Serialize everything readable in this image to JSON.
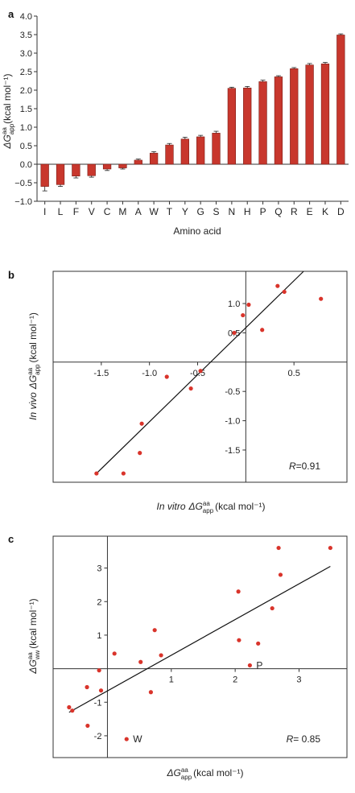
{
  "colors": {
    "bar": "#c8372d",
    "point": "#d9342b",
    "axis": "#333333",
    "line": "#111111"
  },
  "chart_data": [
    {
      "panel": "a",
      "type": "bar",
      "categories": [
        "I",
        "L",
        "F",
        "V",
        "C",
        "M",
        "A",
        "W",
        "T",
        "Y",
        "G",
        "S",
        "N",
        "H",
        "P",
        "Q",
        "R",
        "E",
        "K",
        "D"
      ],
      "values": [
        -0.6,
        -0.55,
        -0.32,
        -0.31,
        -0.13,
        -0.1,
        0.11,
        0.3,
        0.52,
        0.68,
        0.74,
        0.84,
        2.05,
        2.06,
        2.23,
        2.36,
        2.58,
        2.68,
        2.71,
        3.49
      ],
      "errors": [
        0.12,
        0.05,
        0.05,
        0.04,
        0.04,
        0.03,
        0.03,
        0.04,
        0.04,
        0.05,
        0.04,
        0.05,
        0.03,
        0.04,
        0.04,
        0.03,
        0.03,
        0.04,
        0.04,
        0.03
      ],
      "xlabel": "Amino acid",
      "ylabel": {
        "main": "ΔG",
        "sup": "aa",
        "sub": "app",
        "unit": "(kcal mol⁻¹)"
      },
      "ylim": [
        -1.0,
        4.0
      ],
      "yticks": [
        "4.0",
        "3.5",
        "3.0",
        "2.5",
        "2.0",
        "1.5",
        "1.0",
        "0.5",
        "0.0",
        "−0.5",
        "−1.0"
      ]
    },
    {
      "panel": "b",
      "type": "scatter",
      "x": [
        -1.55,
        -1.27,
        -1.1,
        -1.08,
        -0.82,
        -0.57,
        -0.47,
        -0.12,
        -0.03,
        0.03,
        0.17,
        0.33,
        0.4,
        0.78
      ],
      "y": [
        -1.9,
        -1.9,
        -1.55,
        -1.05,
        -0.25,
        -0.45,
        -0.15,
        0.5,
        0.8,
        0.98,
        0.55,
        1.3,
        1.2,
        1.08
      ],
      "fit": [
        [
          -1.55,
          -1.9
        ],
        [
          0.6,
          1.55
        ]
      ],
      "xticks": [
        "-1.5",
        "-1.0",
        "-0.5",
        "0.5"
      ],
      "yticks": [
        "1.0",
        "0.5",
        "-0.5",
        "-1.0",
        "-1.5"
      ],
      "xlim": [
        -2.0,
        1.05
      ],
      "ylim": [
        -2.05,
        1.55
      ],
      "xlabel": {
        "pre": "In vitro",
        "main": "ΔG",
        "sup": "aa",
        "sub": "app",
        "unit": "(kcal mol⁻¹)"
      },
      "ylabel": {
        "pre": "In vivo",
        "main": "ΔG",
        "sup": "aa",
        "sub": "app",
        "unit": "(kcal mol⁻¹)"
      },
      "annotation": {
        "var": "R",
        "value": "=0.91"
      }
    },
    {
      "panel": "c",
      "type": "scatter",
      "x": [
        -0.6,
        -0.55,
        -0.32,
        -0.31,
        -0.13,
        -0.1,
        0.11,
        0.3,
        0.52,
        0.68,
        0.74,
        0.84,
        2.05,
        2.06,
        2.23,
        2.36,
        2.58,
        2.68,
        2.71,
        3.49
      ],
      "y": [
        -1.15,
        -1.25,
        -0.55,
        -1.7,
        -0.05,
        -0.65,
        0.45,
        -2.1,
        0.2,
        -0.7,
        1.15,
        0.4,
        2.3,
        0.85,
        0.1,
        0.75,
        1.8,
        3.6,
        2.8,
        3.6
      ],
      "fit": [
        [
          -0.6,
          -1.3
        ],
        [
          3.49,
          3.05
        ]
      ],
      "xticks": [
        "1",
        "2",
        "3"
      ],
      "yticks": [
        "3",
        "2",
        "1",
        "-1",
        "-2"
      ],
      "xlim": [
        -0.85,
        3.75
      ],
      "ylim": [
        -2.65,
        3.95
      ],
      "point_labels": [
        {
          "index": 7,
          "text": "W"
        },
        {
          "index": 14,
          "text": "P"
        }
      ],
      "xlabel": {
        "main": "ΔG",
        "sup": "aa",
        "sub": "app",
        "unit": "(kcal mol⁻¹)"
      },
      "ylabel": {
        "main": "ΔG",
        "sup": "aa",
        "sub": "ww",
        "unit": "(kcal mol⁻¹)"
      },
      "annotation": {
        "var": "R",
        "value": "= 0.85"
      }
    }
  ]
}
